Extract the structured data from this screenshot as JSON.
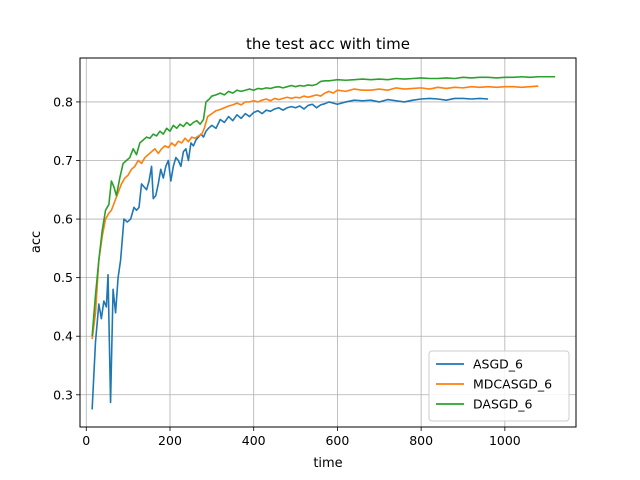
{
  "chart_data": {
    "type": "line",
    "title": "the test acc with time",
    "xlabel": "time",
    "ylabel": "acc",
    "xlim": [
      -15,
      1170
    ],
    "ylim": [
      0.245,
      0.875
    ],
    "xticks": [
      0,
      200,
      400,
      600,
      800,
      1000
    ],
    "yticks": [
      0.3,
      0.4,
      0.5,
      0.6,
      0.7,
      0.8
    ],
    "xtick_labels": [
      "0",
      "200",
      "400",
      "600",
      "800",
      "1000"
    ],
    "ytick_labels": [
      "0.3",
      "0.4",
      "0.5",
      "0.6",
      "0.7",
      "0.8"
    ],
    "grid": true,
    "legend_position": "lower-right",
    "series": [
      {
        "name": "ASGD_6",
        "color": "#1f77b4",
        "x": [
          14,
          22,
          30,
          36,
          42,
          48,
          52,
          58,
          64,
          70,
          76,
          82,
          90,
          98,
          106,
          114,
          120,
          126,
          132,
          138,
          144,
          150,
          156,
          160,
          166,
          172,
          178,
          184,
          190,
          196,
          202,
          208,
          214,
          220,
          226,
          232,
          238,
          244,
          250,
          256,
          262,
          268,
          274,
          280,
          286,
          292,
          300,
          310,
          320,
          330,
          340,
          350,
          360,
          370,
          380,
          390,
          400,
          410,
          420,
          430,
          440,
          450,
          460,
          470,
          480,
          490,
          500,
          510,
          520,
          530,
          540,
          550,
          560,
          570,
          580,
          590,
          600,
          620,
          640,
          660,
          680,
          700,
          720,
          740,
          760,
          780,
          800,
          820,
          840,
          860,
          880,
          900,
          920,
          940,
          960
        ],
        "y": [
          0.275,
          0.39,
          0.455,
          0.43,
          0.46,
          0.45,
          0.505,
          0.287,
          0.48,
          0.44,
          0.5,
          0.53,
          0.6,
          0.595,
          0.6,
          0.62,
          0.615,
          0.62,
          0.66,
          0.655,
          0.65,
          0.665,
          0.69,
          0.635,
          0.64,
          0.66,
          0.685,
          0.67,
          0.69,
          0.7,
          0.665,
          0.69,
          0.705,
          0.7,
          0.69,
          0.715,
          0.72,
          0.7,
          0.73,
          0.725,
          0.735,
          0.74,
          0.745,
          0.74,
          0.75,
          0.755,
          0.76,
          0.755,
          0.77,
          0.765,
          0.775,
          0.768,
          0.778,
          0.772,
          0.78,
          0.775,
          0.782,
          0.785,
          0.78,
          0.786,
          0.784,
          0.788,
          0.79,
          0.786,
          0.79,
          0.792,
          0.79,
          0.793,
          0.788,
          0.794,
          0.796,
          0.79,
          0.795,
          0.797,
          0.8,
          0.798,
          0.796,
          0.8,
          0.803,
          0.802,
          0.803,
          0.8,
          0.804,
          0.802,
          0.8,
          0.803,
          0.805,
          0.806,
          0.805,
          0.803,
          0.806,
          0.806,
          0.805,
          0.806,
          0.805
        ]
      },
      {
        "name": "MDCASGD_6",
        "color": "#ff7f0e",
        "x": [
          14,
          22,
          30,
          38,
          46,
          54,
          60,
          68,
          76,
          84,
          92,
          100,
          108,
          116,
          124,
          132,
          140,
          148,
          156,
          164,
          172,
          180,
          188,
          196,
          204,
          212,
          220,
          228,
          236,
          244,
          252,
          260,
          268,
          276,
          282,
          290,
          300,
          310,
          320,
          330,
          340,
          350,
          360,
          370,
          380,
          390,
          400,
          410,
          420,
          430,
          440,
          450,
          460,
          470,
          480,
          490,
          500,
          510,
          520,
          530,
          540,
          550,
          560,
          570,
          580,
          590,
          600,
          620,
          640,
          660,
          680,
          700,
          720,
          740,
          760,
          780,
          800,
          820,
          840,
          860,
          880,
          900,
          920,
          940,
          960,
          980,
          1000,
          1020,
          1040,
          1060,
          1080
        ],
        "y": [
          0.395,
          0.44,
          0.53,
          0.57,
          0.6,
          0.61,
          0.615,
          0.63,
          0.645,
          0.66,
          0.67,
          0.675,
          0.685,
          0.69,
          0.7,
          0.695,
          0.705,
          0.71,
          0.715,
          0.72,
          0.712,
          0.72,
          0.725,
          0.722,
          0.73,
          0.725,
          0.733,
          0.73,
          0.738,
          0.732,
          0.74,
          0.738,
          0.742,
          0.745,
          0.755,
          0.775,
          0.78,
          0.785,
          0.787,
          0.79,
          0.793,
          0.795,
          0.798,
          0.795,
          0.8,
          0.8,
          0.802,
          0.8,
          0.803,
          0.805,
          0.802,
          0.806,
          0.804,
          0.806,
          0.808,
          0.806,
          0.808,
          0.807,
          0.81,
          0.808,
          0.81,
          0.812,
          0.81,
          0.815,
          0.818,
          0.815,
          0.82,
          0.818,
          0.822,
          0.82,
          0.82,
          0.822,
          0.82,
          0.824,
          0.822,
          0.823,
          0.824,
          0.822,
          0.825,
          0.823,
          0.825,
          0.824,
          0.826,
          0.825,
          0.826,
          0.825,
          0.826,
          0.826,
          0.825,
          0.826,
          0.827
        ]
      },
      {
        "name": "DASGD_6",
        "color": "#2ca02c",
        "x": [
          14,
          22,
          30,
          38,
          46,
          54,
          60,
          66,
          72,
          80,
          88,
          96,
          104,
          112,
          120,
          128,
          136,
          144,
          152,
          160,
          168,
          176,
          184,
          192,
          200,
          208,
          216,
          224,
          232,
          240,
          248,
          256,
          264,
          272,
          280,
          286,
          294,
          300,
          310,
          320,
          330,
          340,
          350,
          360,
          370,
          380,
          390,
          400,
          410,
          420,
          430,
          440,
          450,
          460,
          470,
          480,
          490,
          500,
          510,
          520,
          530,
          540,
          550,
          560,
          570,
          580,
          590,
          600,
          620,
          640,
          660,
          680,
          700,
          720,
          740,
          760,
          780,
          800,
          820,
          840,
          860,
          880,
          900,
          920,
          940,
          960,
          980,
          1000,
          1020,
          1040,
          1060,
          1080,
          1100,
          1120
        ],
        "y": [
          0.4,
          0.47,
          0.53,
          0.58,
          0.615,
          0.625,
          0.665,
          0.655,
          0.64,
          0.67,
          0.695,
          0.7,
          0.705,
          0.72,
          0.71,
          0.73,
          0.735,
          0.74,
          0.738,
          0.745,
          0.742,
          0.75,
          0.745,
          0.755,
          0.75,
          0.76,
          0.755,
          0.762,
          0.758,
          0.765,
          0.76,
          0.765,
          0.768,
          0.762,
          0.77,
          0.8,
          0.805,
          0.81,
          0.812,
          0.815,
          0.812,
          0.818,
          0.815,
          0.82,
          0.818,
          0.82,
          0.822,
          0.82,
          0.823,
          0.822,
          0.824,
          0.823,
          0.825,
          0.826,
          0.824,
          0.826,
          0.828,
          0.826,
          0.828,
          0.827,
          0.829,
          0.828,
          0.83,
          0.835,
          0.836,
          0.836,
          0.837,
          0.838,
          0.837,
          0.838,
          0.839,
          0.838,
          0.839,
          0.838,
          0.84,
          0.839,
          0.84,
          0.841,
          0.84,
          0.84,
          0.841,
          0.84,
          0.842,
          0.841,
          0.842,
          0.842,
          0.841,
          0.842,
          0.842,
          0.843,
          0.842,
          0.843,
          0.843,
          0.843
        ]
      }
    ]
  }
}
